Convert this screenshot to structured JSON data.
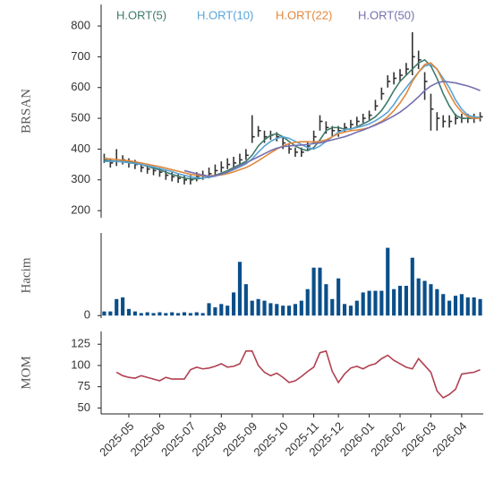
{
  "chart_data": [
    {
      "type": "candlestick",
      "ylabel": "BRSAN",
      "color": "#333333",
      "close": [
        370,
        355,
        360,
        365,
        355,
        350,
        340,
        335,
        330,
        325,
        315,
        310,
        305,
        300,
        300,
        310,
        315,
        320,
        330,
        340,
        350,
        355,
        365,
        380,
        440,
        460,
        440,
        445,
        440,
        420,
        400,
        390,
        390,
        410,
        440,
        490,
        470,
        460,
        460,
        470,
        480,
        490,
        500,
        510,
        540,
        580,
        620,
        630,
        640,
        660,
        700,
        690,
        620,
        530,
        500,
        490,
        490,
        500,
        500,
        500,
        500,
        505
      ],
      "high": [
        385,
        370,
        400,
        380,
        370,
        365,
        355,
        350,
        345,
        340,
        330,
        325,
        320,
        315,
        315,
        325,
        330,
        340,
        350,
        360,
        370,
        375,
        385,
        400,
        510,
        475,
        460,
        460,
        455,
        440,
        415,
        405,
        405,
        425,
        460,
        510,
        490,
        475,
        475,
        485,
        495,
        505,
        515,
        525,
        560,
        600,
        640,
        650,
        660,
        680,
        780,
        720,
        650,
        580,
        520,
        510,
        510,
        515,
        515,
        515,
        515,
        520
      ],
      "low": [
        355,
        340,
        345,
        350,
        340,
        335,
        325,
        320,
        315,
        310,
        300,
        295,
        290,
        285,
        285,
        295,
        300,
        305,
        315,
        325,
        335,
        340,
        350,
        365,
        420,
        440,
        420,
        430,
        425,
        400,
        385,
        375,
        375,
        395,
        420,
        460,
        450,
        440,
        440,
        455,
        465,
        475,
        485,
        495,
        525,
        560,
        600,
        610,
        620,
        640,
        640,
        660,
        560,
        460,
        460,
        470,
        470,
        480,
        485,
        485,
        485,
        490
      ],
      "series": [
        {
          "name": "H.ORT(5)",
          "color": "#3d7a6a",
          "values": [
            365,
            362,
            360,
            360,
            360,
            357,
            350,
            344,
            338,
            333,
            325,
            318,
            312,
            306,
            303,
            303,
            306,
            310,
            315,
            322,
            330,
            340,
            350,
            360,
            380,
            410,
            430,
            445,
            450,
            440,
            425,
            410,
            400,
            395,
            405,
            430,
            460,
            470,
            470,
            465,
            465,
            472,
            482,
            492,
            505,
            525,
            555,
            590,
            620,
            640,
            660,
            680,
            690,
            670,
            630,
            580,
            540,
            510,
            500,
            500,
            500,
            502
          ]
        },
        {
          "name": "H.ORT(10)",
          "color": "#5aa4d8",
          "values": [
            360,
            360,
            360,
            358,
            356,
            353,
            350,
            346,
            342,
            337,
            332,
            327,
            320,
            315,
            310,
            307,
            306,
            308,
            312,
            318,
            325,
            333,
            342,
            352,
            368,
            390,
            410,
            425,
            435,
            440,
            435,
            425,
            415,
            405,
            400,
            410,
            425,
            440,
            455,
            462,
            466,
            470,
            475,
            482,
            492,
            505,
            520,
            545,
            575,
            600,
            625,
            650,
            670,
            675,
            660,
            630,
            600,
            560,
            530,
            510,
            505,
            503
          ]
        },
        {
          "name": "H.ORT(22)",
          "color": "#e0883c",
          "values": [
            370,
            368,
            366,
            364,
            362,
            359,
            355,
            351,
            347,
            343,
            338,
            333,
            328,
            323,
            318,
            315,
            313,
            313,
            314,
            316,
            320,
            326,
            333,
            340,
            350,
            362,
            375,
            388,
            400,
            410,
            418,
            422,
            424,
            424,
            423,
            425,
            430,
            440,
            450,
            455,
            460,
            462,
            465,
            470,
            480,
            490,
            505,
            525,
            550,
            580,
            620,
            650,
            675,
            680,
            660,
            620,
            580,
            545,
            520,
            505,
            500,
            500
          ]
        },
        {
          "name": "H.ORT(50)",
          "color": "#7470b0",
          "values": [
            null,
            null,
            null,
            null,
            null,
            null,
            null,
            null,
            null,
            null,
            null,
            null,
            null,
            330,
            325,
            320,
            315,
            312,
            313,
            318,
            325,
            335,
            345,
            355,
            365,
            375,
            385,
            395,
            403,
            408,
            410,
            412,
            413,
            415,
            418,
            420,
            425,
            430,
            435,
            440,
            447,
            455,
            462,
            470,
            478,
            487,
            497,
            508,
            520,
            535,
            552,
            570,
            590,
            605,
            615,
            620,
            618,
            615,
            610,
            605,
            598,
            590
          ]
        }
      ],
      "ylim": [
        177,
        870
      ],
      "yticks": [
        200,
        300,
        400,
        500,
        600,
        700,
        800
      ]
    },
    {
      "type": "bar",
      "ylabel": "Hacim",
      "color": "#0a4f8a",
      "values": [
        5,
        5,
        20,
        22,
        8,
        5,
        3,
        4,
        3,
        4,
        3,
        4,
        3,
        4,
        3,
        4,
        3,
        15,
        10,
        14,
        12,
        28,
        65,
        38,
        18,
        20,
        18,
        15,
        14,
        12,
        12,
        14,
        18,
        32,
        58,
        58,
        38,
        20,
        45,
        14,
        12,
        18,
        28,
        30,
        30,
        30,
        82,
        32,
        36,
        36,
        70,
        45,
        42,
        38,
        32,
        26,
        18,
        24,
        26,
        22,
        22,
        20
      ],
      "ylim": [
        -3,
        100
      ],
      "yticks": [
        0
      ]
    },
    {
      "type": "line",
      "ylabel": "MOM",
      "color": "#b04050",
      "categories": [
        null,
        null,
        null,
        null,
        "2025-05",
        null,
        null,
        null,
        null,
        "2025-06",
        null,
        null,
        null,
        null,
        "2025-07",
        null,
        null,
        null,
        null,
        "2025-08",
        null,
        null,
        null,
        null,
        "2025-09",
        null,
        null,
        null,
        null,
        "2025-10",
        null,
        null,
        null,
        null,
        "2025-11",
        null,
        null,
        null,
        "2025-12",
        null,
        null,
        null,
        null,
        "2026-01",
        null,
        null,
        null,
        null,
        "2026-02",
        null,
        null,
        null,
        null,
        "2026-03",
        null,
        null,
        null,
        null,
        "2026-04",
        null,
        null,
        null
      ],
      "values": [
        null,
        null,
        92,
        88,
        86,
        85,
        88,
        86,
        84,
        82,
        86,
        84,
        84,
        84,
        95,
        98,
        96,
        97,
        99,
        102,
        98,
        99,
        102,
        117,
        117,
        100,
        92,
        88,
        91,
        86,
        80,
        82,
        87,
        93,
        98,
        115,
        117,
        93,
        80,
        90,
        97,
        99,
        96,
        100,
        102,
        108,
        112,
        106,
        102,
        98,
        96,
        108,
        100,
        92,
        70,
        62,
        66,
        72,
        90,
        91,
        92,
        95
      ],
      "ylim": [
        43,
        140
      ],
      "yticks": [
        50,
        75,
        100,
        125
      ]
    }
  ]
}
